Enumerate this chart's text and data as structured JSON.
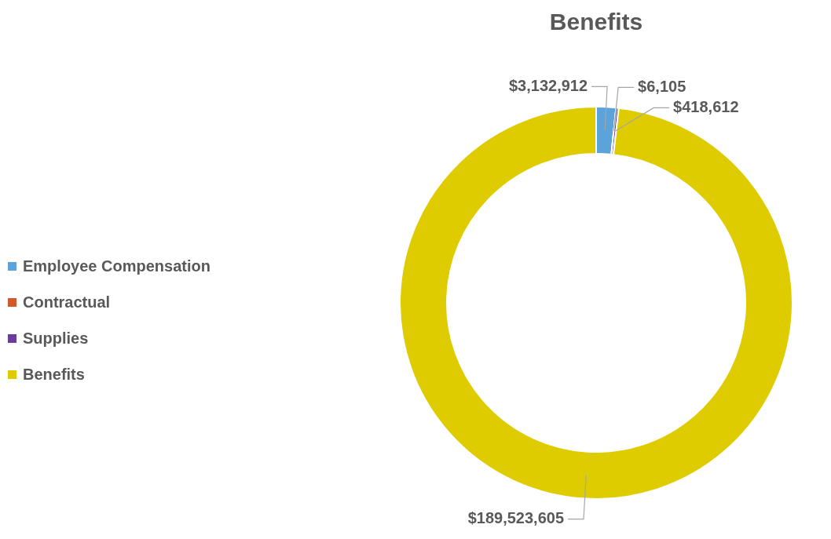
{
  "chart_data": {
    "type": "donut",
    "title": "Benefits",
    "categories": [
      "Employee Compensation",
      "Contractual",
      "Supplies",
      "Benefits"
    ],
    "values": [
      3132912,
      6105,
      418612,
      189523605
    ],
    "colors": [
      "#5ba3d9",
      "#d05a2a",
      "#6a3d9a",
      "#dfcc00"
    ],
    "value_labels": [
      "$3,132,912",
      "$6,105",
      "$418,612",
      "$189,523,605"
    ],
    "legend": "left"
  }
}
